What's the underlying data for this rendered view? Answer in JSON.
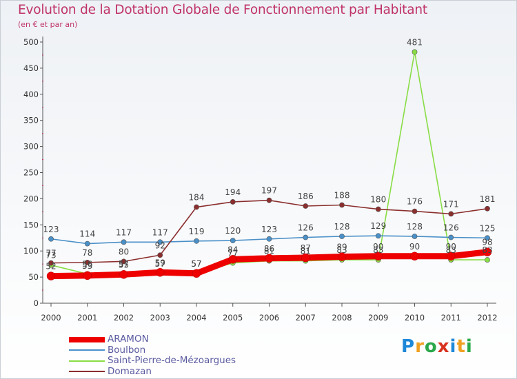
{
  "header": {
    "title": "Evolution de la Dotation Globale de Fonctionnement par Habitant",
    "subtitle": "(en € et par an)"
  },
  "brand": {
    "name": "Proxiti",
    "colors": [
      "#1e88d8",
      "#f0a020",
      "#2aa84a",
      "#d8321e",
      "#1e88d8",
      "#f0a020",
      "#2aa84a"
    ]
  },
  "chart_data": {
    "type": "line",
    "title": "Evolution de la Dotation Globale de Fonctionnement par Habitant",
    "subtitle": "(en € et par an)",
    "xlabel": "",
    "ylabel": "",
    "x": [
      "2000",
      "2001",
      "2002",
      "2003",
      "2004",
      "2005",
      "2006",
      "2007",
      "2008",
      "2009",
      "2010",
      "2011",
      "2012"
    ],
    "ylim": [
      0,
      500
    ],
    "yticks": [
      0,
      50,
      100,
      150,
      200,
      250,
      300,
      350,
      400,
      450,
      500
    ],
    "grid": false,
    "legend_position": "bottom-left",
    "series": [
      {
        "name": "ARAMON",
        "color": "#ee0000",
        "emphasis": true,
        "values": [
          52,
          53,
          55,
          59,
          57,
          84,
          86,
          87,
          89,
          90,
          90,
          90,
          98
        ],
        "labels": [
          "52",
          "53",
          "55",
          "59",
          "57",
          "84",
          "86",
          "87",
          "89",
          "90",
          "90",
          "90",
          "98"
        ]
      },
      {
        "name": "Boulbon",
        "color": "#4a90c8",
        "emphasis": false,
        "values": [
          123,
          114,
          117,
          117,
          119,
          120,
          123,
          126,
          128,
          129,
          128,
          126,
          125
        ],
        "labels": [
          "123",
          "114",
          "117",
          "117",
          "119",
          "120",
          "123",
          "126",
          "128",
          "129",
          "128",
          "126",
          "125"
        ]
      },
      {
        "name": "Saint-Pierre-de-Mézoargues",
        "color": "#88dd44",
        "emphasis": false,
        "values": [
          73,
          56,
          57,
          57,
          57,
          77,
          81,
          81,
          83,
          83,
          481,
          83,
          83
        ],
        "labels": [
          "73",
          "56",
          "57",
          "57",
          "57",
          "77",
          "81",
          "81",
          "83",
          "83",
          "481",
          "83",
          "83"
        ]
      },
      {
        "name": "Domazan",
        "color": "#8b2e2e",
        "emphasis": false,
        "values": [
          77,
          78,
          80,
          92,
          184,
          194,
          197,
          186,
          188,
          180,
          176,
          171,
          181
        ],
        "labels": [
          "77",
          "78",
          "80",
          "92",
          "184",
          "194",
          "197",
          "186",
          "188",
          "180",
          "176",
          "171",
          "181"
        ]
      }
    ]
  }
}
